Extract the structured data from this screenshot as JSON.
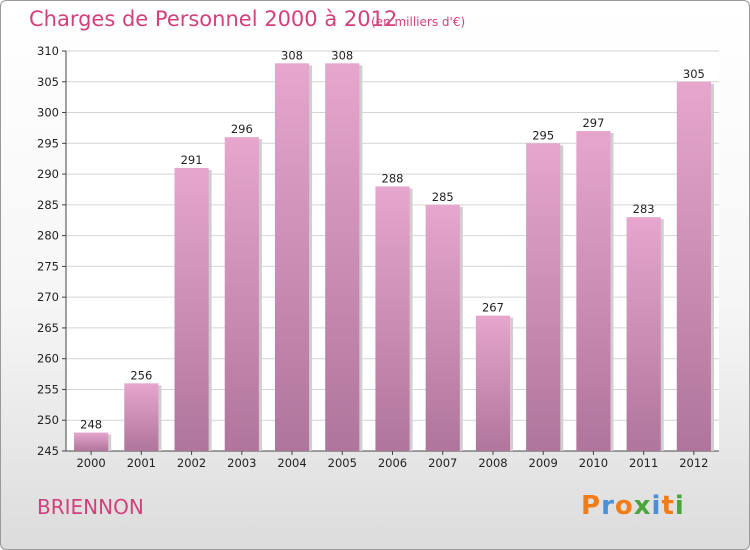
{
  "header": {
    "title": "Charges de Personnel 2000 à 2012",
    "subtitle": "(en milliers d'€)"
  },
  "footer": {
    "place": "BRIENNON",
    "logo": "Proxiti"
  },
  "colors": {
    "title": "#d1427c",
    "bar_top": "#e6a6cd",
    "bar_bottom": "#b0759c",
    "grid": "#d4d4d4",
    "logo_letters": [
      "#f07d1a",
      "#4a90d9",
      "#f07d1a",
      "#4aa63a",
      "#4a90d9",
      "#f07d1a",
      "#4aa63a"
    ]
  },
  "chart_data": {
    "type": "bar",
    "title": "Charges de Personnel 2000 à 2012",
    "subtitle": "(en milliers d'€)",
    "xlabel": "",
    "ylabel": "",
    "categories": [
      "2000",
      "2001",
      "2002",
      "2003",
      "2004",
      "2005",
      "2006",
      "2007",
      "2008",
      "2009",
      "2010",
      "2011",
      "2012"
    ],
    "values": [
      248,
      256,
      291,
      296,
      308,
      308,
      288,
      285,
      267,
      295,
      297,
      283,
      305
    ],
    "ylim": [
      245,
      310
    ],
    "yticks": [
      245,
      250,
      255,
      260,
      265,
      270,
      275,
      280,
      285,
      290,
      295,
      300,
      305,
      310
    ],
    "grid": true,
    "legend": "none"
  }
}
